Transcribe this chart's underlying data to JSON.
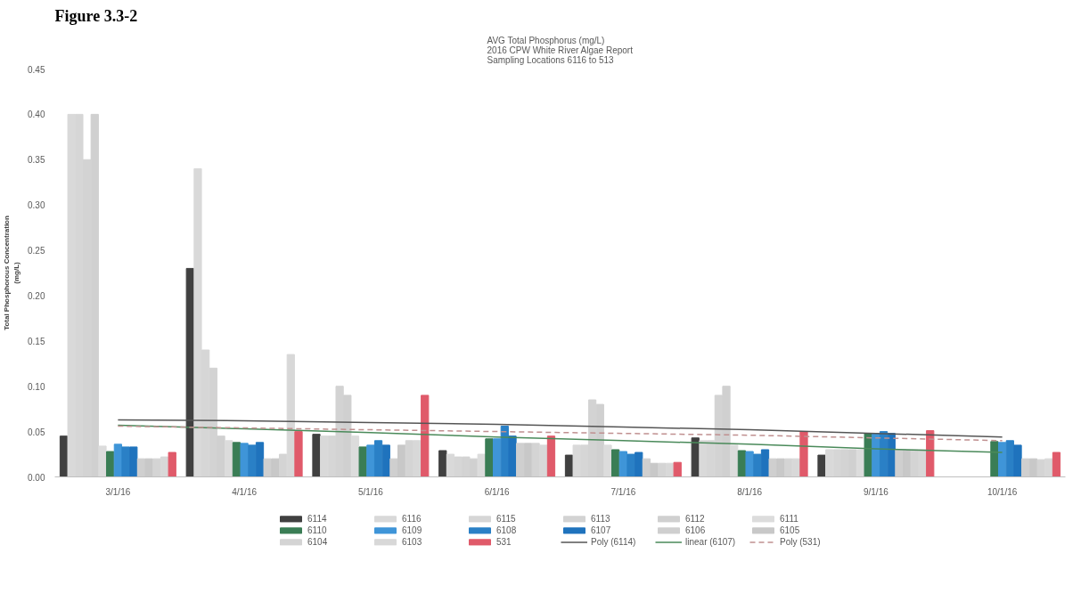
{
  "chart_data": {
    "type": "bar",
    "title": "AVG Total Phosphorus (mg/L)\n2016 CPW White River Algae Report\nSampling Locations  6116 to 513",
    "ylabel": "Total Phosphorous Concentration\n(mg/L)",
    "annotations": [
      "Figure 3.3-2"
    ],
    "categories": [
      "3/1/16",
      "4/1/16",
      "5/1/16",
      "6/1/16",
      "7/1/16",
      "8/1/16",
      "9/1/16",
      "10/1/16"
    ],
    "ylim": [
      0,
      0.45
    ],
    "yticks": [
      {
        "value": 0,
        "label": "0.00"
      },
      {
        "value": 0.05,
        "label": "0.05"
      },
      {
        "value": 0.1,
        "label": "0.10"
      },
      {
        "value": 0.15,
        "label": "0.15"
      },
      {
        "value": 0.2,
        "label": "0.20"
      },
      {
        "value": 0.25,
        "label": "0.25"
      },
      {
        "value": 0.3,
        "label": "0.30"
      },
      {
        "value": 0.35,
        "label": "0.35"
      },
      {
        "value": 0.4,
        "label": "0.40"
      },
      {
        "value": 0.45,
        "label": "0.45"
      }
    ],
    "grid": false,
    "legend": "bottom",
    "series": [
      {
        "name": "6114",
        "color": "#404040",
        "values": [
          0.045,
          0.23,
          0.047,
          0.029,
          0.024,
          0.043,
          0.024,
          null
        ]
      },
      {
        "name": "6116",
        "color": "#d9d9d9",
        "values": [
          0.4,
          0.34,
          0.045,
          0.025,
          0.035,
          0.04,
          0.03,
          null
        ]
      },
      {
        "name": "6115",
        "color": "#d6d6d6",
        "values": [
          0.4,
          0.14,
          0.045,
          0.022,
          0.035,
          0.04,
          0.03,
          null
        ]
      },
      {
        "name": "6113",
        "color": "#d3d3d3",
        "values": [
          0.35,
          0.12,
          0.1,
          0.022,
          0.085,
          0.09,
          0.03,
          null
        ]
      },
      {
        "name": "6112",
        "color": "#d0d0d0",
        "values": [
          0.4,
          0.045,
          0.09,
          0.02,
          0.08,
          0.1,
          0.03,
          null
        ]
      },
      {
        "name": "6111",
        "color": "#dcdcdc",
        "values": [
          0.034,
          0.04,
          0.045,
          0.025,
          0.035,
          0.035,
          0.03,
          null
        ]
      },
      {
        "name": "6110",
        "color": "#3a7d55",
        "values": [
          0.028,
          0.038,
          0.033,
          0.042,
          0.03,
          0.029,
          0.048,
          0.039
        ]
      },
      {
        "name": "6109",
        "color": "#3f95d8",
        "values": [
          0.036,
          0.037,
          0.035,
          0.042,
          0.028,
          0.028,
          0.048,
          0.038
        ]
      },
      {
        "name": "6108",
        "color": "#2a80c6",
        "values": [
          0.033,
          0.035,
          0.04,
          0.056,
          0.025,
          0.025,
          0.05,
          0.04
        ]
      },
      {
        "name": "6107",
        "color": "#1f73bd",
        "values": [
          0.033,
          0.038,
          0.035,
          0.045,
          0.027,
          0.03,
          0.048,
          0.035
        ]
      },
      {
        "name": "6106",
        "color": "#cfcfcf",
        "values": [
          0.02,
          0.02,
          0.02,
          0.037,
          0.02,
          0.02,
          0.03,
          0.02
        ]
      },
      {
        "name": "6105",
        "color": "#c8c8c8",
        "values": [
          0.02,
          0.02,
          0.035,
          0.037,
          0.015,
          0.02,
          0.03,
          0.02
        ]
      },
      {
        "name": "6104",
        "color": "#d4d4d4",
        "values": [
          0.02,
          0.025,
          0.04,
          0.037,
          0.015,
          0.02,
          0.03,
          0.019
        ]
      },
      {
        "name": "6103",
        "color": "#d8d8d8",
        "values": [
          0.022,
          0.135,
          0.04,
          0.035,
          0.015,
          0.02,
          0.03,
          0.02
        ]
      },
      {
        "name": "531",
        "color": "#e05a6a",
        "values": [
          0.027,
          0.05,
          0.09,
          0.045,
          0.016,
          0.05,
          0.051,
          0.027
        ]
      },
      {
        "name": "Poly (6114)",
        "type": "line",
        "color": "#555555",
        "line_style": "solid",
        "values": [
          0.063,
          0.062,
          0.06,
          0.058,
          0.055,
          0.052,
          0.048,
          0.044
        ]
      },
      {
        "name": "linear (6107)",
        "type": "line",
        "color": "#4a8a5a",
        "line_style": "solid",
        "values": [
          0.057,
          0.053,
          0.049,
          0.044,
          0.04,
          0.036,
          0.031,
          0.027
        ]
      },
      {
        "name": "Poly (531)",
        "type": "line",
        "color": "#c09090",
        "line_style": "dashed",
        "values": [
          0.056,
          0.054,
          0.052,
          0.05,
          0.048,
          0.046,
          0.043,
          0.04
        ]
      }
    ]
  }
}
